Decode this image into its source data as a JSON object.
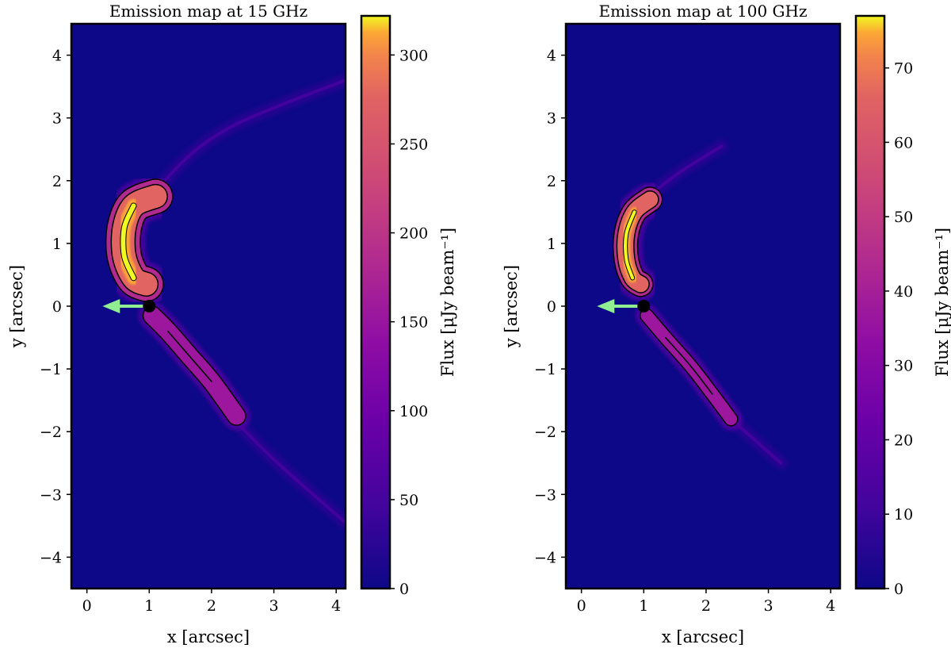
{
  "chart_data": [
    {
      "type": "heatmap",
      "title": "Emission map at 15 GHz",
      "xlabel": "x [arcsec]",
      "ylabel": "y [arcsec]",
      "xlim": [
        -0.25,
        4.15
      ],
      "ylim": [
        -4.5,
        4.5
      ],
      "xticks": [
        0,
        1,
        2,
        3,
        4
      ],
      "yticks": [
        -4,
        -3,
        -2,
        -1,
        0,
        1,
        2,
        3,
        4
      ],
      "colorbar": {
        "label": "Flux [μJy beam⁻¹]",
        "range": [
          0,
          322
        ],
        "ticks": [
          0,
          50,
          100,
          150,
          200,
          250,
          300
        ],
        "colormap": "plasma"
      },
      "source": {
        "x": 1.0,
        "y": 0.0
      },
      "arrow": {
        "from": [
          1.0,
          0.0
        ],
        "to": [
          0.25,
          0.0
        ]
      },
      "lobes": [
        {
          "name": "upper lobe",
          "peak_flux": 322,
          "points": [
            [
              1.1,
              1.75
            ],
            [
              0.75,
              1.6
            ],
            [
              0.6,
              1.25
            ],
            [
              0.6,
              0.8
            ],
            [
              0.75,
              0.45
            ],
            [
              0.95,
              0.35
            ]
          ]
        },
        {
          "name": "lower lobe",
          "peak_flux": 130,
          "points": [
            [
              1.05,
              -0.15
            ],
            [
              1.3,
              -0.4
            ],
            [
              1.65,
              -0.8
            ],
            [
              2.0,
              -1.2
            ],
            [
              2.4,
              -1.75
            ]
          ]
        }
      ],
      "faint_arms": [
        [
          [
            1.2,
            1.95
          ],
          [
            1.7,
            2.45
          ],
          [
            2.3,
            2.85
          ],
          [
            3.1,
            3.2
          ],
          [
            4.15,
            3.6
          ]
        ],
        [
          [
            2.5,
            -1.95
          ],
          [
            2.9,
            -2.35
          ],
          [
            3.4,
            -2.8
          ],
          [
            4.15,
            -3.45
          ]
        ]
      ]
    },
    {
      "type": "heatmap",
      "title": "Emission map at 100 GHz",
      "xlabel": "x [arcsec]",
      "ylabel": "y [arcsec]",
      "xlim": [
        -0.25,
        4.15
      ],
      "ylim": [
        -4.5,
        4.5
      ],
      "xticks": [
        0,
        1,
        2,
        3,
        4
      ],
      "yticks": [
        -4,
        -3,
        -2,
        -1,
        0,
        1,
        2,
        3,
        4
      ],
      "colorbar": {
        "label": "Flux [μJy beam⁻¹]",
        "range": [
          0,
          77
        ],
        "ticks": [
          0,
          10,
          20,
          30,
          40,
          50,
          60,
          70
        ],
        "colormap": "plasma"
      },
      "source": {
        "x": 1.0,
        "y": 0.0
      },
      "arrow": {
        "from": [
          1.0,
          0.0
        ],
        "to": [
          0.25,
          0.0
        ]
      },
      "lobes": [
        {
          "name": "upper lobe",
          "peak_flux": 77,
          "points": [
            [
              1.1,
              1.7
            ],
            [
              0.85,
              1.5
            ],
            [
              0.72,
              1.15
            ],
            [
              0.72,
              0.75
            ],
            [
              0.82,
              0.45
            ],
            [
              0.95,
              0.35
            ]
          ]
        },
        {
          "name": "lower lobe",
          "peak_flux": 28,
          "points": [
            [
              1.05,
              -0.15
            ],
            [
              1.35,
              -0.5
            ],
            [
              1.75,
              -0.95
            ],
            [
              2.1,
              -1.4
            ],
            [
              2.4,
              -1.8
            ]
          ]
        }
      ],
      "faint_arms": [
        [
          [
            1.2,
            1.85
          ],
          [
            1.6,
            2.15
          ],
          [
            2.25,
            2.55
          ]
        ],
        [
          [
            2.4,
            -1.8
          ],
          [
            2.8,
            -2.15
          ],
          [
            3.2,
            -2.5
          ]
        ]
      ]
    }
  ]
}
